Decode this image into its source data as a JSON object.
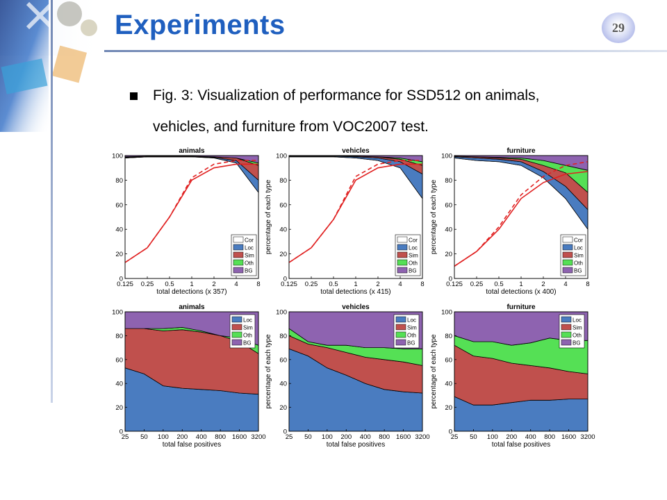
{
  "slide": {
    "title": "Experiments",
    "page_number": "29",
    "bullet_line1": "Fig. 3: Visualization of performance for SSD512 on animals,",
    "bullet_line2": "vehicles, and furniture from VOC2007 test."
  },
  "colors": {
    "title": "#1f5fbf",
    "Cor": "#ffffff",
    "Loc": "#4a7cc0",
    "Sim": "#c0504d",
    "Oth": "#55e055",
    "BG": "#8e63b0",
    "curve": "#e02020"
  },
  "chart_data": [
    {
      "type": "area",
      "title": "animals",
      "xlabel": "total detections (x 357)",
      "ylabel": "percentage of each type",
      "x_ticks": [
        "0.125",
        "0.25",
        "0.5",
        "1",
        "2",
        "4",
        "8"
      ],
      "ylim": [
        0,
        100
      ],
      "y_ticks": [
        "0",
        "20",
        "40",
        "60",
        "80",
        "100"
      ],
      "legend": [
        "Cor",
        "Loc",
        "Sim",
        "Oth",
        "BG"
      ],
      "stack_order": [
        "Cor",
        "Loc",
        "Sim",
        "Oth",
        "BG"
      ],
      "cumulative": {
        "Cor": [
          98,
          99,
          99,
          99,
          98,
          94,
          70
        ],
        "Loc": [
          98,
          99,
          99,
          99,
          98.5,
          96,
          80
        ],
        "Sim": [
          98.5,
          99.5,
          99.5,
          99.5,
          99,
          98,
          92
        ],
        "Oth": [
          99,
          99.5,
          99.5,
          99.5,
          99,
          98,
          94
        ]
      },
      "recall_curve": [
        13,
        25,
        50,
        80,
        90,
        93,
        93
      ],
      "recall_dashed": [
        13,
        25,
        50,
        82,
        93,
        96,
        96
      ]
    },
    {
      "type": "area",
      "title": "vehicles",
      "xlabel": "total detections (x 415)",
      "ylabel": "percentage of each type",
      "x_ticks": [
        "0.125",
        "0.25",
        "0.5",
        "1",
        "2",
        "4",
        "8"
      ],
      "ylim": [
        0,
        100
      ],
      "y_ticks": [
        "0",
        "20",
        "40",
        "60",
        "80",
        "100"
      ],
      "legend": [
        "Cor",
        "Loc",
        "Sim",
        "Oth",
        "BG"
      ],
      "stack_order": [
        "Cor",
        "Loc",
        "Sim",
        "Oth",
        "BG"
      ],
      "cumulative": {
        "Cor": [
          99,
          99,
          99,
          98,
          96,
          90,
          65
        ],
        "Loc": [
          99.5,
          99.5,
          99.5,
          99,
          98,
          95,
          85
        ],
        "Sim": [
          99.5,
          99.5,
          99.5,
          99.5,
          99,
          97,
          92
        ],
        "Oth": [
          99.5,
          99.5,
          99.5,
          99.5,
          99,
          98,
          95
        ]
      },
      "recall_curve": [
        13,
        25,
        48,
        80,
        90,
        93,
        93
      ],
      "recall_dashed": [
        13,
        25,
        48,
        83,
        93,
        96,
        96
      ]
    },
    {
      "type": "area",
      "title": "furniture",
      "xlabel": "total detections (x 400)",
      "ylabel": "percentage of each type",
      "x_ticks": [
        "0.125",
        "0.25",
        "0.5",
        "1",
        "2",
        "4",
        "8"
      ],
      "ylim": [
        0,
        100
      ],
      "y_ticks": [
        "0",
        "20",
        "40",
        "60",
        "80",
        "100"
      ],
      "legend": [
        "Cor",
        "Loc",
        "Sim",
        "Oth",
        "BG"
      ],
      "stack_order": [
        "Cor",
        "Loc",
        "Sim",
        "Oth",
        "BG"
      ],
      "cumulative": {
        "Cor": [
          98,
          96,
          95,
          92,
          82,
          65,
          40
        ],
        "Loc": [
          99,
          98,
          97,
          95,
          87,
          75,
          56
        ],
        "Sim": [
          99.5,
          99,
          98,
          97,
          92,
          86,
          70
        ],
        "Oth": [
          99.5,
          99,
          98.5,
          98,
          96,
          92,
          88
        ]
      },
      "recall_curve": [
        10,
        22,
        40,
        65,
        78,
        85,
        87
      ],
      "recall_dashed": [
        10,
        22,
        42,
        68,
        83,
        92,
        95
      ]
    },
    {
      "type": "area",
      "title": "animals",
      "xlabel": "total false positives",
      "ylabel": "percentage of each type",
      "x_ticks": [
        "25",
        "50",
        "100",
        "200",
        "400",
        "800",
        "1600",
        "3200"
      ],
      "ylim": [
        0,
        100
      ],
      "y_ticks": [
        "0",
        "20",
        "40",
        "60",
        "80",
        "100"
      ],
      "legend": [
        "Loc",
        "Sim",
        "Oth",
        "BG"
      ],
      "stack_order": [
        "Loc",
        "Sim",
        "Oth",
        "BG"
      ],
      "cumulative": {
        "Loc": [
          53,
          48,
          38,
          36,
          35,
          34,
          32,
          31
        ],
        "Sim": [
          86,
          86,
          84,
          85,
          83,
          80,
          75,
          65
        ],
        "Oth": [
          86,
          86,
          86,
          87,
          84,
          80,
          78,
          72
        ]
      }
    },
    {
      "type": "area",
      "title": "vehicles",
      "xlabel": "total false positives",
      "ylabel": "percentage of each type",
      "x_ticks": [
        "25",
        "50",
        "100",
        "200",
        "400",
        "800",
        "1600",
        "3200"
      ],
      "ylim": [
        0,
        100
      ],
      "y_ticks": [
        "0",
        "20",
        "40",
        "60",
        "80",
        "100"
      ],
      "legend": [
        "Loc",
        "Sim",
        "Oth",
        "BG"
      ],
      "stack_order": [
        "Loc",
        "Sim",
        "Oth",
        "BG"
      ],
      "cumulative": {
        "Loc": [
          69,
          63,
          53,
          47,
          40,
          35,
          33,
          32
        ],
        "Sim": [
          80,
          73,
          70,
          66,
          62,
          60,
          58,
          55
        ],
        "Oth": [
          86,
          75,
          72,
          72,
          70,
          70,
          69,
          69
        ]
      }
    },
    {
      "type": "area",
      "title": "furniture",
      "xlabel": "total false positives",
      "ylabel": "percentage of each type",
      "x_ticks": [
        "25",
        "50",
        "100",
        "200",
        "400",
        "800",
        "1600",
        "3200"
      ],
      "ylim": [
        0,
        100
      ],
      "y_ticks": [
        "0",
        "20",
        "40",
        "60",
        "80",
        "100"
      ],
      "legend": [
        "Loc",
        "Sim",
        "Oth",
        "BG"
      ],
      "stack_order": [
        "Loc",
        "Sim",
        "Oth",
        "BG"
      ],
      "cumulative": {
        "Loc": [
          29,
          22,
          22,
          24,
          26,
          26,
          27,
          27
        ],
        "Sim": [
          72,
          63,
          61,
          57,
          55,
          53,
          50,
          48
        ],
        "Oth": [
          80,
          75,
          75,
          72,
          74,
          78,
          76,
          76
        ]
      }
    }
  ]
}
